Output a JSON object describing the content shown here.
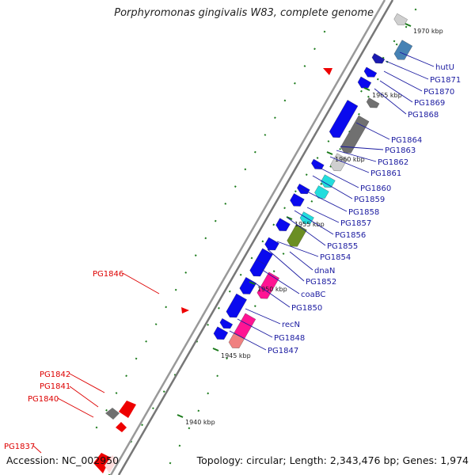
{
  "title": "Porphyromonas gingivalis W83, complete genome",
  "accession": "Accession: NC_002950",
  "summary": "Topology: circular; Length: 2,343,476 bp; Genes: 1,974",
  "colors": {
    "forward_gene": "#0a0aee",
    "reverse_gene": "#ee0000",
    "backbone": "#888888",
    "tick": "#1a7a1a",
    "label_forward": "#1a1aa0",
    "label_reverse": "#dd0000",
    "cyan": "#22dddd",
    "magenta": "#ff1493",
    "olive": "#6b8e23",
    "steel": "#4682b4",
    "gray": "#707070",
    "light_gray": "#cfcfcf",
    "salmon": "#f08080",
    "navy": "#1a1ab0"
  },
  "kbp_labels": [
    "1970 kbp",
    "1965 kbp",
    "1960 kbp",
    "1955 kbp",
    "1950 kbp",
    "1945 kbp",
    "1940 kbp"
  ],
  "gene_labels_forward": [
    "hutU",
    "PG1871",
    "PG1870",
    "PG1869",
    "PG1868",
    "PG1864",
    "PG1863",
    "PG1862",
    "PG1861",
    "PG1860",
    "PG1859",
    "PG1858",
    "PG1857",
    "PG1856",
    "PG1855",
    "PG1854",
    "dnaN",
    "PG1852",
    "coaBC",
    "PG1850",
    "recN",
    "PG1848",
    "PG1847"
  ],
  "gene_labels_reverse": [
    "PG1846",
    "PG1842",
    "PG1841",
    "PG1840",
    "PG1837"
  ]
}
